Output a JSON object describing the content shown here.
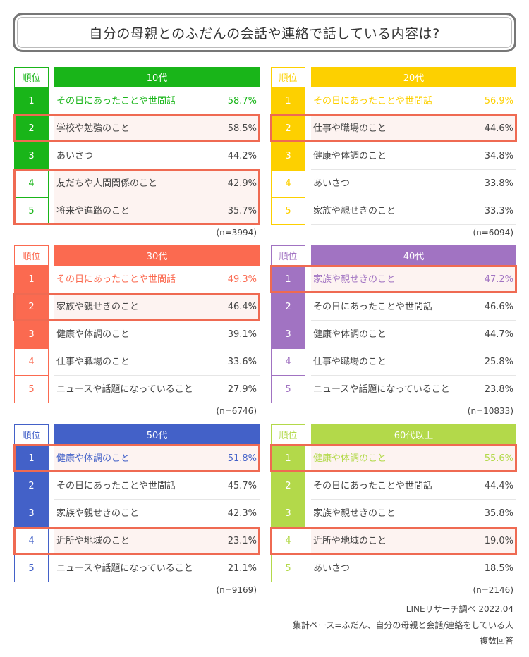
{
  "title": "自分の母親とのふだんの会話や連絡で話している内容は?",
  "colors": {
    "highlight": "#ef6a52",
    "text": "#444444"
  },
  "chart_data": [
    {
      "type": "table",
      "rank_header": "順位",
      "group": "10代",
      "color": "#19b519",
      "n": "(n=3994)",
      "highlight_ranks": [
        2,
        4,
        5
      ],
      "rows": [
        {
          "rank": "1",
          "label": "その日にあったことや世間話",
          "value": "58.7%"
        },
        {
          "rank": "2",
          "label": "学校や勉強のこと",
          "value": "58.5%"
        },
        {
          "rank": "3",
          "label": "あいさつ",
          "value": "44.2%"
        },
        {
          "rank": "4",
          "label": "友だちや人間関係のこと",
          "value": "42.9%"
        },
        {
          "rank": "5",
          "label": "将来や進路のこと",
          "value": "35.7%"
        }
      ]
    },
    {
      "type": "table",
      "rank_header": "順位",
      "group": "20代",
      "color": "#fdd000",
      "n": "(n=6094)",
      "highlight_ranks": [
        2
      ],
      "rows": [
        {
          "rank": "1",
          "label": "その日にあったことや世間話",
          "value": "56.9%"
        },
        {
          "rank": "2",
          "label": "仕事や職場のこと",
          "value": "44.6%"
        },
        {
          "rank": "3",
          "label": "健康や体調のこと",
          "value": "34.8%"
        },
        {
          "rank": "4",
          "label": "あいさつ",
          "value": "33.8%"
        },
        {
          "rank": "5",
          "label": "家族や親せきのこと",
          "value": "33.3%"
        }
      ]
    },
    {
      "type": "table",
      "rank_header": "順位",
      "group": "30代",
      "color": "#fb6a50",
      "n": "(n=6746)",
      "highlight_ranks": [
        2
      ],
      "rows": [
        {
          "rank": "1",
          "label": "その日にあったことや世間話",
          "value": "49.3%"
        },
        {
          "rank": "2",
          "label": "家族や親せきのこと",
          "value": "46.4%"
        },
        {
          "rank": "3",
          "label": "健康や体調のこと",
          "value": "39.1%"
        },
        {
          "rank": "4",
          "label": "仕事や職場のこと",
          "value": "33.6%"
        },
        {
          "rank": "5",
          "label": "ニュースや話題になっていること",
          "value": "27.9%"
        }
      ]
    },
    {
      "type": "table",
      "rank_header": "順位",
      "group": "40代",
      "color": "#a173c2",
      "n": "(n=10833)",
      "highlight_ranks": [
        1
      ],
      "rows": [
        {
          "rank": "1",
          "label": "家族や親せきのこと",
          "value": "47.2%"
        },
        {
          "rank": "2",
          "label": "その日にあったことや世間話",
          "value": "46.6%"
        },
        {
          "rank": "3",
          "label": "健康や体調のこと",
          "value": "44.7%"
        },
        {
          "rank": "4",
          "label": "仕事や職場のこと",
          "value": "25.8%"
        },
        {
          "rank": "5",
          "label": "ニュースや話題になっていること",
          "value": "23.8%"
        }
      ]
    },
    {
      "type": "table",
      "rank_header": "順位",
      "group": "50代",
      "color": "#4361c8",
      "n": "(n=9169)",
      "highlight_ranks": [
        1,
        4
      ],
      "rows": [
        {
          "rank": "1",
          "label": "健康や体調のこと",
          "value": "51.8%"
        },
        {
          "rank": "2",
          "label": "その日にあったことや世間話",
          "value": "45.7%"
        },
        {
          "rank": "3",
          "label": "家族や親せきのこと",
          "value": "42.3%"
        },
        {
          "rank": "4",
          "label": "近所や地域のこと",
          "value": "23.1%"
        },
        {
          "rank": "5",
          "label": "ニュースや話題になっていること",
          "value": "21.1%"
        }
      ]
    },
    {
      "type": "table",
      "rank_header": "順位",
      "group": "60代以上",
      "color": "#b3d94a",
      "n": "(n=2146)",
      "highlight_ranks": [
        1,
        4
      ],
      "rows": [
        {
          "rank": "1",
          "label": "健康や体調のこと",
          "value": "55.6%"
        },
        {
          "rank": "2",
          "label": "その日にあったことや世間話",
          "value": "44.4%"
        },
        {
          "rank": "3",
          "label": "家族や親せきのこと",
          "value": "35.8%"
        },
        {
          "rank": "4",
          "label": "近所や地域のこと",
          "value": "19.0%"
        },
        {
          "rank": "5",
          "label": "あいさつ",
          "value": "18.5%"
        }
      ]
    }
  ],
  "footer": {
    "source": "LINEリサーチ調べ 2022.04",
    "base": "集計ベース=ふだん、自分の母親と会話/連絡をしている人",
    "method": "複数回答"
  }
}
